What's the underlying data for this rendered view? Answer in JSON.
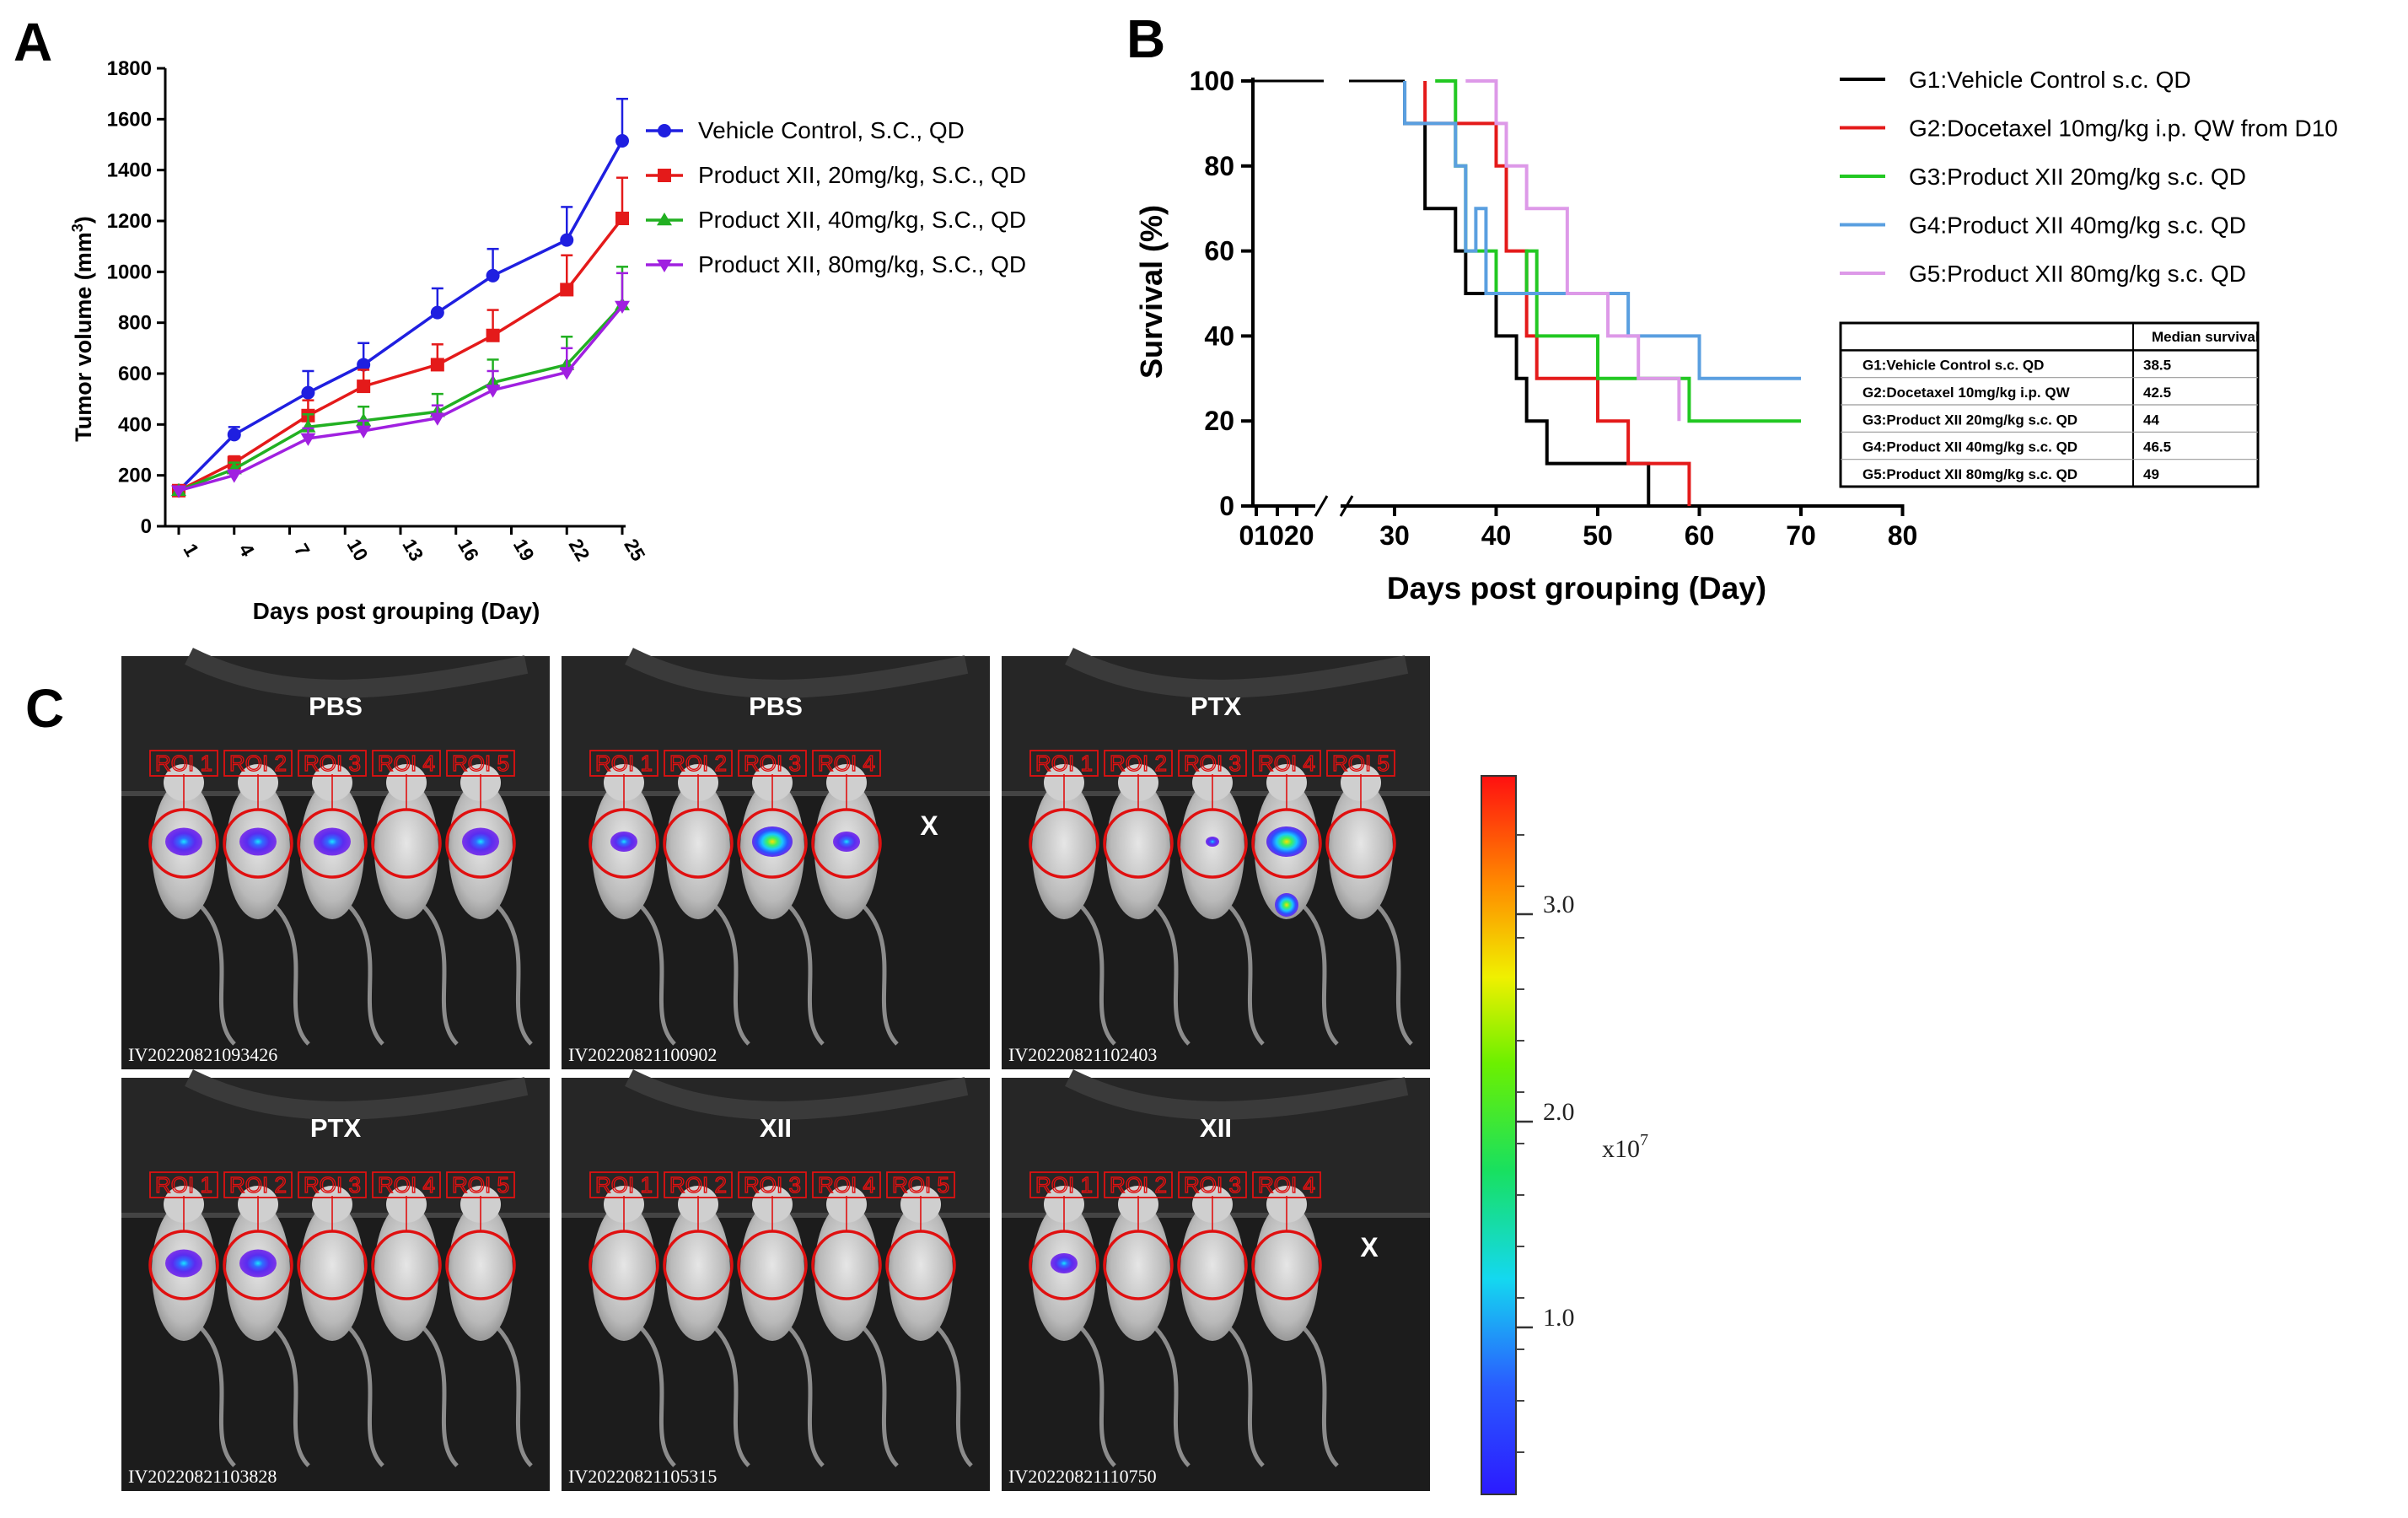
{
  "panel_letters": {
    "a": "A",
    "b": "B",
    "c": "C"
  },
  "chart_data": [
    {
      "id": "A",
      "type": "line",
      "ylabel_main": "Tumor volume (mm",
      "ylabel_sup": "3",
      "ylabel_end": ")",
      "xlabel": "Days post grouping (Day)",
      "categories": [
        "1",
        "4",
        "7",
        "10",
        "13",
        "16",
        "19",
        "22",
        "25"
      ],
      "x": [
        1,
        4,
        8,
        11,
        15,
        18,
        22,
        25
      ],
      "ylim": [
        0,
        1800
      ],
      "yticks": [
        "0",
        "200",
        "400",
        "600",
        "800",
        "1000",
        "1200",
        "1400",
        "1600",
        "1800"
      ],
      "series": [
        {
          "name": "Vehicle Control, S.C., QD",
          "color": "#1f1fe0",
          "marker": "circle",
          "values": [
            140,
            360,
            525,
            635,
            840,
            985,
            1125,
            1515
          ],
          "errors": [
            10,
            30,
            85,
            85,
            95,
            105,
            130,
            165
          ]
        },
        {
          "name": "Product XII, 20mg/kg, S.C., QD",
          "color": "#e41a1a",
          "marker": "square",
          "values": [
            140,
            250,
            435,
            550,
            635,
            750,
            930,
            1210
          ],
          "errors": [
            10,
            25,
            60,
            65,
            80,
            100,
            135,
            160
          ]
        },
        {
          "name": "Product XII, 40mg/kg, S.C., QD",
          "color": "#22b022",
          "marker": "triangle-up",
          "values": [
            140,
            225,
            390,
            415,
            450,
            565,
            635,
            870
          ],
          "errors": [
            10,
            25,
            50,
            55,
            70,
            90,
            110,
            150
          ]
        },
        {
          "name": "Product XII, 80mg/kg, S.C., QD",
          "color": "#a020e0",
          "marker": "triangle-down",
          "values": [
            140,
            200,
            345,
            375,
            425,
            535,
            605,
            865
          ],
          "errors": [
            10,
            20,
            40,
            40,
            50,
            75,
            95,
            130
          ]
        }
      ]
    },
    {
      "id": "B",
      "type": "line",
      "xlabel": "Days post grouping (Day)",
      "ylabel": "Survival (%)",
      "ylim": [
        0,
        100
      ],
      "yticks": [
        "0",
        "20",
        "40",
        "60",
        "80",
        "100"
      ],
      "xticks_left": "01020",
      "xticks": [
        "30",
        "40",
        "50",
        "60",
        "70",
        "80"
      ],
      "series": [
        {
          "name": "G1:Vehicle Control s.c. QD",
          "color": "#000000",
          "steps": [
            [
              31,
              100
            ],
            [
              31,
              90
            ],
            [
              33,
              90
            ],
            [
              33,
              70
            ],
            [
              36,
              70
            ],
            [
              36,
              60
            ],
            [
              37,
              60
            ],
            [
              37,
              50
            ],
            [
              40,
              50
            ],
            [
              40,
              40
            ],
            [
              42,
              40
            ],
            [
              42,
              30
            ],
            [
              43,
              30
            ],
            [
              43,
              20
            ],
            [
              45,
              20
            ],
            [
              45,
              10
            ],
            [
              55,
              10
            ],
            [
              55,
              0
            ]
          ]
        },
        {
          "name": "G2:Docetaxel  10mg/kg i.p. QW from D10",
          "color": "#e41a1a",
          "steps": [
            [
              33,
              100
            ],
            [
              33,
              90
            ],
            [
              40,
              90
            ],
            [
              40,
              80
            ],
            [
              41,
              80
            ],
            [
              41,
              60
            ],
            [
              43,
              60
            ],
            [
              43,
              40
            ],
            [
              44,
              40
            ],
            [
              44,
              30
            ],
            [
              50,
              30
            ],
            [
              50,
              20
            ],
            [
              53,
              20
            ],
            [
              53,
              10
            ],
            [
              59,
              10
            ],
            [
              59,
              0
            ]
          ]
        },
        {
          "name": "G3:Product XII  20mg/kg s.c. QD",
          "color": "#22c822",
          "steps": [
            [
              34,
              100
            ],
            [
              36,
              100
            ],
            [
              36,
              80
            ],
            [
              37,
              80
            ],
            [
              37,
              60
            ],
            [
              40,
              60
            ],
            [
              40,
              50
            ],
            [
              43,
              50
            ],
            [
              43,
              60
            ],
            [
              44,
              60
            ],
            [
              44,
              40
            ],
            [
              50,
              40
            ],
            [
              50,
              30
            ],
            [
              59,
              30
            ],
            [
              59,
              20
            ],
            [
              70,
              20
            ]
          ]
        },
        {
          "name": "G4:Product XII  40mg/kg s.c. QD",
          "color": "#5a9fe0",
          "steps": [
            [
              31,
              100
            ],
            [
              31,
              90
            ],
            [
              36,
              90
            ],
            [
              36,
              80
            ],
            [
              37,
              80
            ],
            [
              37,
              60
            ],
            [
              38,
              60
            ],
            [
              38,
              70
            ],
            [
              39,
              70
            ],
            [
              39,
              50
            ],
            [
              53,
              50
            ],
            [
              53,
              40
            ],
            [
              60,
              40
            ],
            [
              60,
              30
            ],
            [
              70,
              30
            ]
          ]
        },
        {
          "name": "G5:Product XII  80mg/kg s.c. QD",
          "color": "#dd99e8",
          "steps": [
            [
              37,
              100
            ],
            [
              40,
              100
            ],
            [
              40,
              90
            ],
            [
              41,
              90
            ],
            [
              41,
              80
            ],
            [
              43,
              80
            ],
            [
              43,
              70
            ],
            [
              47,
              70
            ],
            [
              47,
              50
            ],
            [
              51,
              50
            ],
            [
              51,
              40
            ],
            [
              54,
              40
            ],
            [
              54,
              30
            ],
            [
              58,
              30
            ],
            [
              58,
              20
            ]
          ]
        }
      ],
      "table": {
        "header": [
          "",
          "Median survival"
        ],
        "rows": [
          [
            "G1:Vehicle Control s.c. QD",
            "38.5"
          ],
          [
            "G2:Docetaxel  10mg/kg i.p. QW",
            "42.5"
          ],
          [
            "G3:Product XII 20mg/kg s.c. QD",
            "44"
          ],
          [
            "G4:Product XII 40mg/kg s.c. QD",
            "46.5"
          ],
          [
            "G5:Product XII 80mg/kg s.c. QD",
            "49"
          ]
        ]
      }
    }
  ],
  "imaging": {
    "images": [
      {
        "group": "PBS",
        "id": "IV20220821093426",
        "rois": [
          "ROI 1",
          "ROI 2",
          "ROI 3",
          "ROI 4",
          "ROI 5"
        ],
        "signal": [
          3,
          3,
          3,
          0,
          3
        ],
        "dead_mark": ""
      },
      {
        "group": "PBS",
        "id": "IV20220821100902",
        "rois": [
          "ROI 1",
          "ROI 2",
          "ROI 3",
          "ROI 4"
        ],
        "signal": [
          2,
          0,
          4,
          2
        ],
        "dead_mark": "X"
      },
      {
        "group": "PTX",
        "id": "IV20220821102403",
        "rois": [
          "ROI 1",
          "ROI 2",
          "ROI 3",
          "ROI 4",
          "ROI 5"
        ],
        "signal": [
          0,
          0,
          1,
          5,
          0
        ],
        "dead_mark": ""
      },
      {
        "group": "PTX",
        "id": "IV20220821103828",
        "rois": [
          "ROI 1",
          "ROI 2",
          "ROI 3",
          "ROI 4",
          "ROI 5"
        ],
        "signal": [
          3,
          3,
          0,
          0,
          0
        ],
        "dead_mark": ""
      },
      {
        "group": "XII",
        "id": "IV20220821105315",
        "rois": [
          "ROI 1",
          "ROI 2",
          "ROI 3",
          "ROI 4",
          "ROI 5"
        ],
        "signal": [
          0,
          0,
          0,
          0,
          0
        ],
        "dead_mark": ""
      },
      {
        "group": "XII",
        "id": "IV20220821110750",
        "rois": [
          "ROI 1",
          "ROI 2",
          "ROI 3",
          "ROI 4"
        ],
        "signal": [
          2,
          0,
          0,
          0
        ],
        "dead_mark": "X"
      }
    ],
    "colorbar": {
      "ticks": [
        "1.0",
        "2.0",
        "3.0"
      ],
      "unit": "x10",
      "unit_exp": "7"
    }
  }
}
